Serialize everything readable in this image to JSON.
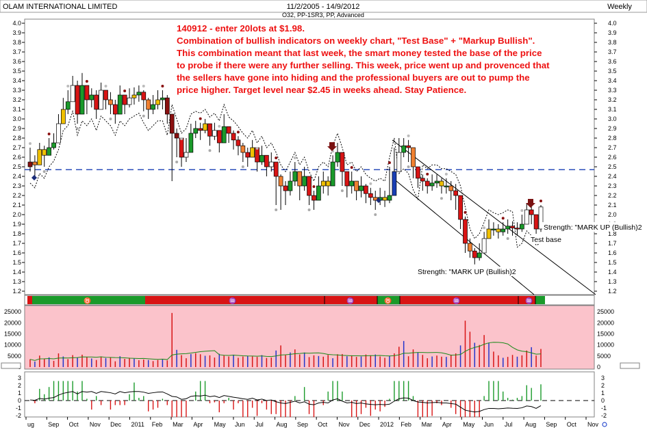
{
  "window": {
    "title": "OLAM INTERNATIONAL LIMITED",
    "date_range": "11/2/2005 - 14/9/2012",
    "indicators": "O32, PP-1SR3, PP, Advanced",
    "period": "Weekly"
  },
  "annotation": {
    "lines": [
      "140912 - enter 20lots at $1.98.",
      "Combination of bullish indicators on weekly chart, \"Test Base\" + \"Markup Bullish\".",
      "This combination meant that last week, the smart money tested the base of the price",
      "to probe if there were any further selling. This week, price went up and provenced that",
      "the sellers have gone into hiding and the professional buyers are out to pump the",
      "price higher. Target level near $2.45 in weeks ahead. Stay Patience."
    ],
    "color": "#ee1111"
  },
  "labels": {
    "strength_right": "Strength: \"MARK UP (Bullish)2",
    "test_base": "Test base",
    "strength_bottom": "Strength: \"MARK UP (Bullish)2"
  },
  "months": [
    "ug",
    "Sep",
    "Oct",
    "Nov",
    "Dec",
    "2011",
    "Feb",
    "Mar",
    "Apr",
    "May",
    "Jun",
    "Jul",
    "Aug",
    "Sep",
    "Oct",
    "Nov",
    "Dec",
    "2012",
    "Feb",
    "Mar",
    "Apr",
    "May",
    "Jun",
    "Jul",
    "Aug",
    "Sep",
    "Oct",
    "Nov"
  ],
  "volume_axis_labels": [
    "25000",
    "20000",
    "15000",
    "10000",
    "5000",
    "0"
  ],
  "osc_axis_labels": [
    "3",
    "2",
    "1",
    "0",
    "-1",
    "-2"
  ],
  "chart_data": {
    "type": "candlestick",
    "price_axis": [
      "4.0",
      "3.9",
      "3.8",
      "3.7",
      "3.6",
      "3.5",
      "3.4",
      "3.3",
      "3.2",
      "3.1",
      "3.0",
      "2.9",
      "2.8",
      "2.7",
      "2.6",
      "2.5",
      "2.4",
      "2.3",
      "2.2",
      "2.1",
      "2.0",
      "1.9",
      "1.8",
      "1.7",
      "1.6",
      "1.5",
      "1.4",
      "1.3",
      "1.2"
    ],
    "ylim": [
      1.15,
      4.05
    ],
    "support_line": 2.47,
    "closes": [
      2.55,
      2.52,
      2.68,
      2.62,
      2.7,
      2.75,
      2.95,
      3.1,
      3.18,
      3.35,
      3.05,
      3.35,
      3.2,
      3.25,
      3.1,
      3.3,
      3.2,
      3.15,
      3.05,
      3.25,
      3.15,
      3.22,
      3.25,
      3.28,
      3.2,
      3.1,
      3.15,
      3.2,
      3.22,
      3.05,
      2.85,
      2.8,
      2.6,
      2.65,
      2.85,
      2.9,
      2.88,
      2.95,
      2.82,
      2.88,
      2.75,
      2.92,
      2.85,
      2.78,
      2.72,
      2.65,
      2.6,
      2.7,
      2.55,
      2.62,
      2.5,
      2.55,
      2.4,
      2.3,
      2.25,
      2.35,
      2.45,
      2.3,
      2.4,
      2.2,
      2.15,
      2.3,
      2.35,
      2.3,
      2.55,
      2.65,
      2.45,
      2.3,
      2.35,
      2.25,
      2.3,
      2.22,
      2.18,
      2.15,
      2.18,
      2.15,
      2.2,
      2.45,
      2.65,
      2.72,
      2.7,
      2.5,
      2.38,
      2.35,
      2.3,
      2.33,
      2.35,
      2.3,
      2.3,
      2.25,
      2.2,
      1.95,
      1.7,
      1.62,
      1.55,
      1.6,
      1.75,
      1.85,
      1.85,
      1.82,
      1.85,
      1.88,
      1.86,
      1.85,
      1.9,
      2.05,
      2.0,
      1.85,
      2.08
    ],
    "wick_ranges": [
      [
        2.45,
        2.7
      ],
      [
        2.4,
        2.62
      ],
      [
        2.55,
        2.75
      ],
      [
        2.5,
        2.72
      ],
      [
        2.62,
        2.8
      ],
      [
        2.68,
        2.85
      ],
      [
        2.8,
        3.05
      ],
      [
        3.0,
        3.22
      ],
      [
        3.05,
        3.3
      ],
      [
        3.2,
        3.45
      ],
      [
        2.95,
        3.4
      ],
      [
        3.1,
        3.48
      ],
      [
        3.05,
        3.35
      ],
      [
        3.12,
        3.32
      ],
      [
        3.0,
        3.3
      ],
      [
        3.15,
        3.38
      ],
      [
        3.1,
        3.3
      ],
      [
        3.05,
        3.28
      ],
      [
        2.95,
        3.2
      ],
      [
        3.1,
        3.35
      ],
      [
        3.05,
        3.25
      ],
      [
        3.12,
        3.32
      ],
      [
        3.15,
        3.33
      ],
      [
        3.18,
        3.35
      ],
      [
        3.08,
        3.3
      ],
      [
        3.0,
        3.22
      ],
      [
        3.05,
        3.25
      ],
      [
        3.1,
        3.3
      ],
      [
        3.1,
        3.3
      ],
      [
        2.95,
        3.25
      ],
      [
        2.35,
        3.05
      ],
      [
        2.6,
        2.9
      ],
      [
        2.5,
        2.75
      ],
      [
        2.55,
        2.8
      ],
      [
        2.75,
        2.95
      ],
      [
        2.8,
        2.98
      ],
      [
        2.78,
        2.96
      ],
      [
        2.85,
        3.0
      ],
      [
        2.72,
        2.92
      ],
      [
        2.78,
        2.96
      ],
      [
        2.65,
        2.88
      ],
      [
        2.82,
        3.05
      ],
      [
        2.75,
        2.92
      ],
      [
        2.68,
        2.88
      ],
      [
        2.62,
        2.82
      ],
      [
        2.55,
        2.75
      ],
      [
        2.5,
        2.7
      ],
      [
        2.6,
        2.78
      ],
      [
        2.45,
        2.65
      ],
      [
        2.52,
        2.72
      ],
      [
        2.4,
        2.6
      ],
      [
        2.45,
        2.65
      ],
      [
        2.1,
        2.55
      ],
      [
        2.05,
        2.42
      ],
      [
        2.1,
        2.35
      ],
      [
        2.2,
        2.45
      ],
      [
        2.3,
        2.55
      ],
      [
        2.15,
        2.42
      ],
      [
        2.25,
        2.5
      ],
      [
        2.1,
        2.35
      ],
      [
        2.05,
        2.25
      ],
      [
        2.18,
        2.4
      ],
      [
        2.22,
        2.45
      ],
      [
        2.2,
        2.4
      ],
      [
        2.4,
        2.62
      ],
      [
        2.5,
        2.75
      ],
      [
        2.3,
        2.6
      ],
      [
        2.18,
        2.42
      ],
      [
        2.22,
        2.45
      ],
      [
        2.15,
        2.35
      ],
      [
        2.18,
        2.4
      ],
      [
        2.12,
        2.32
      ],
      [
        2.1,
        2.28
      ],
      [
        2.05,
        2.25
      ],
      [
        2.1,
        2.28
      ],
      [
        2.08,
        2.25
      ],
      [
        2.12,
        2.5
      ],
      [
        2.35,
        2.7
      ],
      [
        2.55,
        2.8
      ],
      [
        2.6,
        2.8
      ],
      [
        2.55,
        2.78
      ],
      [
        2.38,
        2.65
      ],
      [
        2.28,
        2.48
      ],
      [
        2.25,
        2.42
      ],
      [
        2.22,
        2.38
      ],
      [
        2.25,
        2.42
      ],
      [
        2.28,
        2.42
      ],
      [
        2.22,
        2.38
      ],
      [
        2.22,
        2.38
      ],
      [
        2.15,
        2.35
      ],
      [
        2.05,
        2.32
      ],
      [
        1.85,
        2.2
      ],
      [
        1.6,
        1.98
      ],
      [
        1.55,
        1.75
      ],
      [
        1.48,
        1.65
      ],
      [
        1.52,
        1.7
      ],
      [
        1.65,
        1.82
      ],
      [
        1.78,
        1.95
      ],
      [
        1.78,
        1.92
      ],
      [
        1.75,
        1.9
      ],
      [
        1.78,
        1.92
      ],
      [
        1.8,
        1.95
      ],
      [
        1.78,
        1.93
      ],
      [
        1.78,
        1.92
      ],
      [
        1.82,
        2.0
      ],
      [
        1.95,
        2.12
      ],
      [
        1.9,
        2.15
      ],
      [
        1.8,
        2.0
      ],
      [
        1.82,
        2.1
      ]
    ],
    "volume": [
      3500,
      2500,
      5200,
      3800,
      4400,
      2800,
      6200,
      4800,
      3600,
      5400,
      4300,
      5600,
      4600,
      3900,
      3200,
      4800,
      4100,
      4400,
      2600,
      4900,
      3700,
      4200,
      3800,
      3100,
      3400,
      3200,
      2700,
      3200,
      3600,
      3000,
      24500,
      7800,
      5400,
      4000,
      5900,
      6300,
      5800,
      5100,
      5300,
      4300,
      6000,
      5200,
      4800,
      5600,
      4200,
      4800,
      5000,
      4800,
      4600,
      5400,
      4100,
      4300,
      7500,
      9800,
      5400,
      6600,
      8000,
      5700,
      6600,
      4500,
      5300,
      5000,
      4700,
      5500,
      4000,
      5800,
      5900,
      4900,
      5300,
      4600,
      4800,
      5700,
      5300,
      5700,
      4800,
      4200,
      5000,
      6200,
      9200,
      11800,
      4900,
      8000,
      6500,
      5500,
      4000,
      4800,
      5200,
      4700,
      4600,
      5600,
      6200,
      9800,
      21000,
      16000,
      11000,
      10000,
      14500,
      11000,
      7000,
      5300,
      4200,
      4600,
      5500,
      4700,
      5300,
      7500,
      9000,
      5200,
      8200
    ]
  }
}
